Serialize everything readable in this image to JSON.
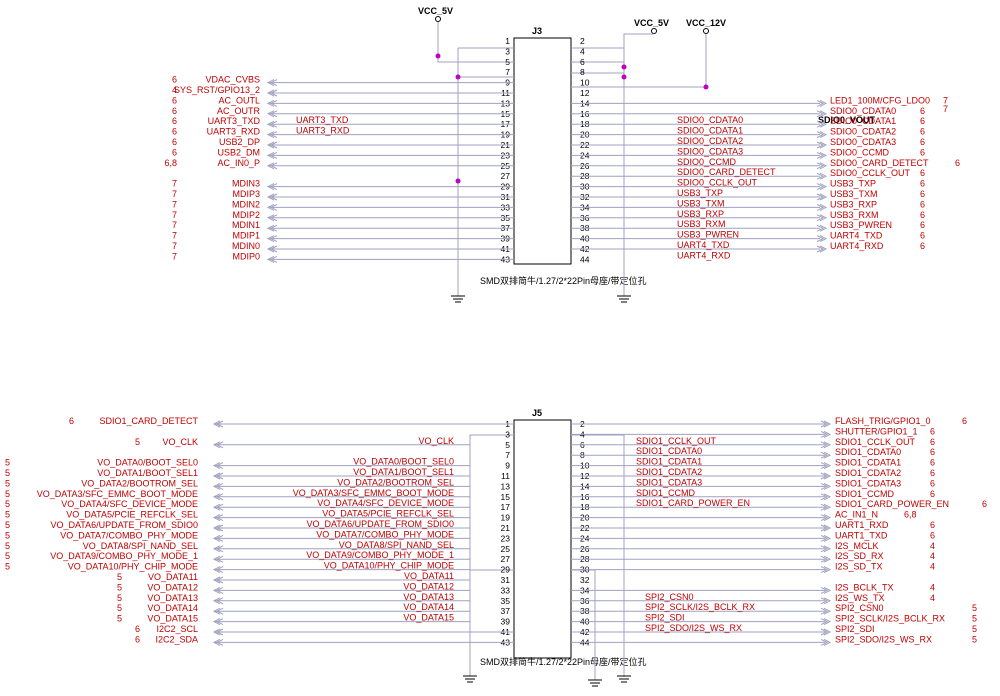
{
  "colors": {
    "net_label": "#c00000",
    "wire": "#a0a0c0",
    "junction": "#c000c0",
    "outline": "#000000"
  },
  "j3": {
    "ref": "J3",
    "caption": "SMD双排简牛/1.27/2*22Pin母座/带定位孔",
    "power_labels": [
      "VCC_5V",
      "VCC_5V",
      "VCC_12V"
    ],
    "vout_label": "SDIO0_VOUT",
    "vout_page": "7",
    "left_signals": [
      {
        "name": "VDAC_CVBS",
        "page": "6"
      },
      {
        "name": "SYS_RST/GPIO13_2",
        "page": "4"
      },
      {
        "name": "AC_OUTL",
        "page": "6"
      },
      {
        "name": "AC_OUTR",
        "page": "6"
      },
      {
        "name": "UART3_TXD",
        "page": "6"
      },
      {
        "name": "UART3_RXD",
        "page": "6"
      },
      {
        "name": "USB2_DP",
        "page": "6"
      },
      {
        "name": "USB2_DM",
        "page": "6"
      },
      {
        "name": "AC_IN0_P",
        "page": "6,8"
      },
      {
        "name": "MDIN3",
        "page": "7"
      },
      {
        "name": "MDIP3",
        "page": "7"
      },
      {
        "name": "MDIN2",
        "page": "7"
      },
      {
        "name": "MDIP2",
        "page": "7"
      },
      {
        "name": "MDIN1",
        "page": "7"
      },
      {
        "name": "MDIP1",
        "page": "7"
      },
      {
        "name": "MDIN0",
        "page": "7"
      },
      {
        "name": "MDIP0",
        "page": "7"
      }
    ],
    "right_signals": [
      {
        "name": "LED1_100M/CFG_LDO0",
        "page": "7"
      },
      {
        "name": "SDIO0_CDATA0",
        "page": "6"
      },
      {
        "name": "SDIO0_CDATA1",
        "page": "6"
      },
      {
        "name": "SDIO0_CDATA2",
        "page": "6"
      },
      {
        "name": "SDIO0_CDATA3",
        "page": "6"
      },
      {
        "name": "SDIO0_CCMD",
        "page": "6"
      },
      {
        "name": "SDIO0_CARD_DETECT",
        "page": "6"
      },
      {
        "name": "SDIO0_CCLK_OUT",
        "page": "6"
      },
      {
        "name": "USB3_TXP",
        "page": "6"
      },
      {
        "name": "USB3_TXM",
        "page": "6"
      },
      {
        "name": "USB3_RXP",
        "page": "6"
      },
      {
        "name": "USB3_RXM",
        "page": "6"
      },
      {
        "name": "USB3_PWREN",
        "page": "6"
      },
      {
        "name": "UART4_TXD",
        "page": "6"
      },
      {
        "name": "UART4_RXD",
        "page": "6"
      }
    ],
    "inner_left": [
      "UART3_TXD",
      "UART3_RXD"
    ],
    "inner_right": [
      "SDIO0_CDATA0",
      "SDIO0_CDATA1",
      "SDIO0_CDATA2",
      "SDIO0_CDATA3",
      "SDIO0_CCMD",
      "SDIO0_CARD_DETECT",
      "SDIO0_CCLK_OUT",
      "USB3_TXP",
      "USB3_TXM",
      "USB3_RXP",
      "USB3_RXM",
      "USB3_PWREN",
      "UART4_TXD",
      "UART4_RXD"
    ]
  },
  "j5": {
    "ref": "J5",
    "caption": "SMD双排简牛/1.27/2*22Pin母座/带定位孔",
    "left_signals": [
      {
        "name": "SDIO1_CARD_DETECT",
        "page": "6"
      },
      {
        "name": "VO_CLK",
        "page": "5"
      },
      {
        "name": "VO_DATA0/BOOT_SEL0",
        "page": "5"
      },
      {
        "name": "VO_DATA1/BOOT_SEL1",
        "page": "5"
      },
      {
        "name": "VO_DATA2/BOOTROM_SEL",
        "page": "5"
      },
      {
        "name": "VO_DATA3/SFC_EMMC_BOOT_MODE",
        "page": "5"
      },
      {
        "name": "VO_DATA4/SFC_DEVICE_MODE",
        "page": "5"
      },
      {
        "name": "VO_DATA5/PCIE_REFCLK_SEL",
        "page": "5"
      },
      {
        "name": "VO_DATA6/UPDATE_FROM_SDIO0",
        "page": "5"
      },
      {
        "name": "VO_DATA7/COMBO_PHY_MODE",
        "page": "5"
      },
      {
        "name": "VO_DATA8/SPI_NAND_SEL",
        "page": "5"
      },
      {
        "name": "VO_DATA9/COMBO_PHY_MODE_1",
        "page": "5"
      },
      {
        "name": "VO_DATA10/PHY_CHIP_MODE",
        "page": "5"
      },
      {
        "name": "VO_DATA11",
        "page": "5"
      },
      {
        "name": "VO_DATA12",
        "page": "5"
      },
      {
        "name": "VO_DATA13",
        "page": "5"
      },
      {
        "name": "VO_DATA14",
        "page": "5"
      },
      {
        "name": "VO_DATA15",
        "page": "5"
      },
      {
        "name": "I2C2_SCL",
        "page": "6"
      },
      {
        "name": "I2C2_SDA",
        "page": "6"
      }
    ],
    "right_signals": [
      {
        "name": "FLASH_TRIG/GPIO1_0",
        "page": "6"
      },
      {
        "name": "SHUTTER/GPIO1_1",
        "page": "6"
      },
      {
        "name": "SDIO1_CCLK_OUT",
        "page": "6"
      },
      {
        "name": "SDIO1_CDATA0",
        "page": "6"
      },
      {
        "name": "SDIO1_CDATA1",
        "page": "6"
      },
      {
        "name": "SDIO1_CDATA2",
        "page": "6"
      },
      {
        "name": "SDIO1_CDATA3",
        "page": "6"
      },
      {
        "name": "SDIO1_CCMD",
        "page": "6"
      },
      {
        "name": "SDIO1_CARD_POWER_EN",
        "page": "6"
      },
      {
        "name": "AC_IN1_N",
        "page": "6,8"
      },
      {
        "name": "UART1_RXD",
        "page": "6"
      },
      {
        "name": "UART1_TXD",
        "page": "6"
      },
      {
        "name": "I2S_MCLK",
        "page": "4"
      },
      {
        "name": "I2S_SD_RX",
        "page": "4"
      },
      {
        "name": "I2S_SD_TX",
        "page": "4"
      },
      {
        "name": "I2S_BCLK_TX",
        "page": "4"
      },
      {
        "name": "I2S_WS_TX",
        "page": "4"
      },
      {
        "name": "SPI2_CSN0",
        "page": "5"
      },
      {
        "name": "SPI2_SCLK/I2S_BCLK_RX",
        "page": "5"
      },
      {
        "name": "SPI2_SDI",
        "page": "5"
      },
      {
        "name": "SPI2_SDO/I2S_WS_RX",
        "page": "5"
      }
    ],
    "inner_left": [
      "VO_CLK",
      "VO_DATA0/BOOT_SEL0",
      "VO_DATA1/BOOT_SEL1",
      "VO_DATA2/BOOTROM_SEL",
      "VO_DATA3/SFC_EMMC_BOOT_MODE",
      "VO_DATA4/SFC_DEVICE_MODE",
      "VO_DATA5/PCIE_REFCLK_SEL",
      "VO_DATA6/UPDATE_FROM_SDIO0",
      "VO_DATA7/COMBO_PHY_MODE",
      "VO_DATA8/SPI_NAND_SEL",
      "VO_DATA9/COMBO_PHY_MODE_1",
      "VO_DATA10/PHY_CHIP_MODE",
      "VO_DATA11",
      "VO_DATA12",
      "VO_DATA13",
      "VO_DATA14",
      "VO_DATA15"
    ],
    "inner_right": [
      "SDIO1_CCLK_OUT",
      "SDIO1_CDATA0",
      "SDIO1_CDATA1",
      "SDIO1_CDATA2",
      "SDIO1_CDATA3",
      "SDIO1_CCMD",
      "SDIO1_CARD_POWER_EN",
      "SPI2_CSN0",
      "SPI2_SCLK/I2S_BCLK_RX",
      "SPI2_SDI",
      "SPI2_SDO/I2S_WS_RX"
    ]
  }
}
